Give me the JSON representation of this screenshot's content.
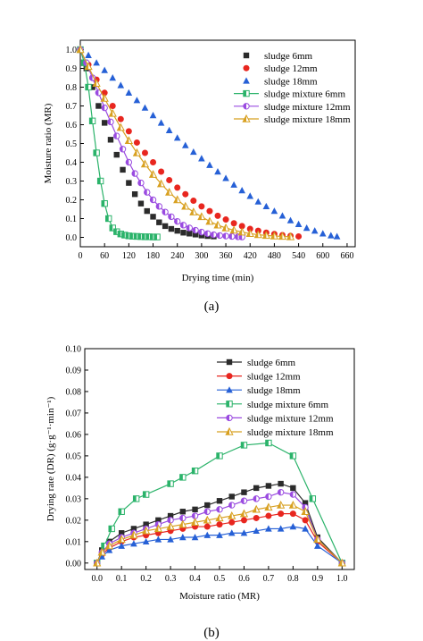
{
  "chart_data": [
    {
      "type": "scatter",
      "panel_label": "(a)",
      "xlabel": "Drying time (min)",
      "ylabel": "Moisture ratio (MR)",
      "xlim": [
        0,
        680
      ],
      "ylim": [
        -0.05,
        1.05
      ],
      "xticks": [
        "0",
        "60",
        "120",
        "180",
        "240",
        "300",
        "360",
        "420",
        "480",
        "540",
        "600",
        "660"
      ],
      "yticks": [
        "0.0",
        "0.1",
        "0.2",
        "0.3",
        "0.4",
        "0.5",
        "0.6",
        "0.7",
        "0.8",
        "0.9",
        "1.0"
      ],
      "legend": "top-right",
      "grid": false,
      "series": [
        {
          "name": "sludge 6mm",
          "color": "#2b2b2b",
          "marker": "square",
          "line": false,
          "x": [
            0,
            15,
            30,
            45,
            60,
            75,
            90,
            105,
            120,
            135,
            150,
            165,
            180,
            195,
            210,
            225,
            240,
            255,
            270,
            285,
            300,
            315,
            330
          ],
          "y": [
            1.0,
            0.9,
            0.8,
            0.7,
            0.61,
            0.52,
            0.44,
            0.36,
            0.29,
            0.23,
            0.18,
            0.14,
            0.11,
            0.08,
            0.06,
            0.045,
            0.035,
            0.025,
            0.02,
            0.015,
            0.01,
            0.007,
            0.005
          ]
        },
        {
          "name": "sludge 12mm",
          "color": "#e8261f",
          "marker": "circle",
          "line": false,
          "x": [
            0,
            20,
            40,
            60,
            80,
            100,
            120,
            140,
            160,
            180,
            200,
            220,
            240,
            260,
            280,
            300,
            320,
            340,
            360,
            380,
            400,
            420,
            440,
            460,
            480,
            500,
            520,
            540
          ],
          "y": [
            1.0,
            0.92,
            0.84,
            0.77,
            0.7,
            0.63,
            0.565,
            0.505,
            0.45,
            0.4,
            0.35,
            0.305,
            0.265,
            0.23,
            0.195,
            0.165,
            0.14,
            0.115,
            0.095,
            0.075,
            0.06,
            0.045,
            0.035,
            0.025,
            0.018,
            0.012,
            0.008,
            0.005
          ]
        },
        {
          "name": "sludge 18mm",
          "color": "#2660d6",
          "marker": "triangle",
          "line": false,
          "x": [
            0,
            20,
            40,
            60,
            80,
            100,
            120,
            140,
            160,
            180,
            200,
            220,
            240,
            260,
            280,
            300,
            320,
            340,
            360,
            380,
            400,
            420,
            440,
            460,
            480,
            500,
            520,
            540,
            560,
            580,
            600,
            620,
            635
          ],
          "y": [
            1.0,
            0.97,
            0.93,
            0.89,
            0.85,
            0.81,
            0.77,
            0.73,
            0.69,
            0.65,
            0.61,
            0.57,
            0.53,
            0.49,
            0.455,
            0.42,
            0.385,
            0.35,
            0.315,
            0.28,
            0.25,
            0.22,
            0.19,
            0.165,
            0.14,
            0.115,
            0.09,
            0.07,
            0.05,
            0.035,
            0.02,
            0.01,
            0.005
          ]
        },
        {
          "name": "sludge mixture 6mm",
          "color": "#2bb36a",
          "marker": "half-square",
          "line": true,
          "x": [
            0,
            10,
            20,
            30,
            40,
            50,
            60,
            70,
            80,
            90,
            100,
            110,
            120,
            130,
            140,
            150,
            160,
            170,
            180,
            190
          ],
          "y": [
            1.0,
            0.93,
            0.8,
            0.62,
            0.45,
            0.3,
            0.18,
            0.1,
            0.05,
            0.03,
            0.018,
            0.012,
            0.008,
            0.006,
            0.005,
            0.004,
            0.003,
            0.003,
            0.002,
            0.002
          ]
        },
        {
          "name": "sludge mixture 12mm",
          "color": "#9a4be0",
          "marker": "half-circle",
          "line": true,
          "x": [
            0,
            15,
            30,
            45,
            60,
            75,
            90,
            105,
            120,
            135,
            150,
            165,
            180,
            195,
            210,
            225,
            240,
            255,
            270,
            285,
            300,
            315,
            330,
            345,
            360,
            375,
            390,
            400
          ],
          "y": [
            1.0,
            0.93,
            0.85,
            0.77,
            0.69,
            0.615,
            0.54,
            0.47,
            0.4,
            0.34,
            0.29,
            0.24,
            0.2,
            0.165,
            0.135,
            0.11,
            0.085,
            0.065,
            0.05,
            0.038,
            0.028,
            0.02,
            0.014,
            0.01,
            0.007,
            0.005,
            0.003,
            0.002
          ]
        },
        {
          "name": "sludge mixture 18mm",
          "color": "#d8a020",
          "marker": "half-triangle",
          "line": true,
          "x": [
            0,
            20,
            40,
            60,
            80,
            100,
            120,
            140,
            160,
            180,
            200,
            220,
            240,
            260,
            280,
            300,
            320,
            340,
            360,
            380,
            400,
            420,
            440,
            460,
            480,
            500,
            520
          ],
          "y": [
            1.0,
            0.91,
            0.82,
            0.74,
            0.66,
            0.585,
            0.515,
            0.45,
            0.39,
            0.335,
            0.285,
            0.24,
            0.2,
            0.165,
            0.135,
            0.11,
            0.085,
            0.065,
            0.05,
            0.038,
            0.028,
            0.02,
            0.014,
            0.01,
            0.007,
            0.005,
            0.003
          ]
        }
      ]
    },
    {
      "type": "line",
      "panel_label": "(b)",
      "xlabel": "Moisture ratio (MR)",
      "ylabel": "Drying rate (DR) (g·g⁻¹·min⁻¹)",
      "xlim": [
        -0.05,
        1.05
      ],
      "ylim": [
        -0.003,
        0.1
      ],
      "xticks": [
        "0.0",
        "0.1",
        "0.2",
        "0.3",
        "0.4",
        "0.5",
        "0.6",
        "0.7",
        "0.8",
        "0.9",
        "1.0"
      ],
      "yticks": [
        "0.00",
        "0.01",
        "0.02",
        "0.03",
        "0.04",
        "0.05",
        "0.06",
        "0.07",
        "0.08",
        "0.09",
        "0.10"
      ],
      "legend": "top-right",
      "grid": false,
      "series": [
        {
          "name": "sludge 6mm",
          "color": "#2b2b2b",
          "marker": "square",
          "x": [
            0.0,
            0.02,
            0.05,
            0.1,
            0.15,
            0.2,
            0.25,
            0.3,
            0.35,
            0.4,
            0.45,
            0.5,
            0.55,
            0.6,
            0.65,
            0.7,
            0.75,
            0.8,
            0.85,
            0.9,
            1.0
          ],
          "y": [
            0.0,
            0.006,
            0.01,
            0.014,
            0.016,
            0.018,
            0.02,
            0.022,
            0.024,
            0.025,
            0.027,
            0.029,
            0.031,
            0.033,
            0.035,
            0.036,
            0.037,
            0.035,
            0.028,
            0.012,
            0.0
          ]
        },
        {
          "name": "sludge 12mm",
          "color": "#e8261f",
          "marker": "circle",
          "x": [
            0.0,
            0.02,
            0.05,
            0.1,
            0.15,
            0.2,
            0.25,
            0.3,
            0.35,
            0.4,
            0.45,
            0.5,
            0.55,
            0.6,
            0.65,
            0.7,
            0.75,
            0.8,
            0.85,
            0.9,
            1.0
          ],
          "y": [
            0.0,
            0.004,
            0.007,
            0.01,
            0.012,
            0.013,
            0.014,
            0.015,
            0.016,
            0.017,
            0.017,
            0.018,
            0.019,
            0.02,
            0.021,
            0.022,
            0.023,
            0.023,
            0.02,
            0.01,
            0.0
          ]
        },
        {
          "name": "sludge 18mm",
          "color": "#2660d6",
          "marker": "triangle",
          "x": [
            0.0,
            0.02,
            0.05,
            0.1,
            0.15,
            0.2,
            0.25,
            0.3,
            0.35,
            0.4,
            0.45,
            0.5,
            0.55,
            0.6,
            0.65,
            0.7,
            0.75,
            0.8,
            0.85,
            0.9,
            1.0
          ],
          "y": [
            0.0,
            0.003,
            0.006,
            0.008,
            0.009,
            0.01,
            0.011,
            0.011,
            0.012,
            0.012,
            0.013,
            0.013,
            0.014,
            0.014,
            0.015,
            0.016,
            0.016,
            0.017,
            0.016,
            0.008,
            0.0
          ]
        },
        {
          "name": "sludge mixture 6mm",
          "color": "#2bb36a",
          "marker": "half-square",
          "x": [
            0.0,
            0.03,
            0.06,
            0.1,
            0.16,
            0.2,
            0.3,
            0.35,
            0.4,
            0.5,
            0.6,
            0.7,
            0.8,
            0.88,
            1.0
          ],
          "y": [
            0.0,
            0.008,
            0.016,
            0.024,
            0.03,
            0.032,
            0.037,
            0.04,
            0.043,
            0.05,
            0.055,
            0.056,
            0.05,
            0.03,
            0.0
          ]
        },
        {
          "name": "sludge mixture 12mm",
          "color": "#9a4be0",
          "marker": "half-circle",
          "x": [
            0.0,
            0.02,
            0.05,
            0.1,
            0.15,
            0.2,
            0.25,
            0.3,
            0.35,
            0.4,
            0.45,
            0.5,
            0.55,
            0.6,
            0.65,
            0.7,
            0.75,
            0.8,
            0.85,
            0.9,
            1.0
          ],
          "y": [
            0.0,
            0.005,
            0.009,
            0.012,
            0.014,
            0.016,
            0.018,
            0.02,
            0.021,
            0.022,
            0.024,
            0.025,
            0.027,
            0.029,
            0.03,
            0.031,
            0.033,
            0.032,
            0.026,
            0.011,
            0.0
          ]
        },
        {
          "name": "sludge mixture 18mm",
          "color": "#d8a020",
          "marker": "half-triangle",
          "x": [
            0.0,
            0.02,
            0.05,
            0.1,
            0.15,
            0.2,
            0.25,
            0.3,
            0.35,
            0.4,
            0.45,
            0.5,
            0.55,
            0.6,
            0.65,
            0.7,
            0.75,
            0.8,
            0.85,
            0.9,
            1.0
          ],
          "y": [
            0.0,
            0.005,
            0.008,
            0.011,
            0.013,
            0.015,
            0.016,
            0.017,
            0.018,
            0.019,
            0.02,
            0.021,
            0.022,
            0.023,
            0.025,
            0.026,
            0.027,
            0.027,
            0.024,
            0.011,
            0.0
          ]
        }
      ]
    }
  ]
}
